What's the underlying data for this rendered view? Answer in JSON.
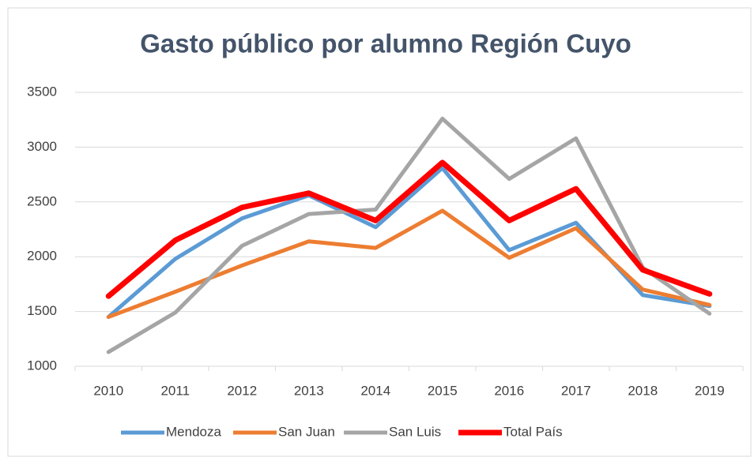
{
  "chart_data": {
    "type": "line",
    "title": "Gasto público por alumno Región Cuyo",
    "categories": [
      "2010",
      "2011",
      "2012",
      "2013",
      "2014",
      "2015",
      "2016",
      "2017",
      "2018",
      "2019"
    ],
    "series": [
      {
        "name": "Mendoza",
        "color": "#5b9bd5",
        "values": [
          1450,
          1980,
          2350,
          2560,
          2270,
          2810,
          2060,
          2310,
          1650,
          1550
        ]
      },
      {
        "name": "San Juan",
        "color": "#ed7d31",
        "values": [
          1450,
          1680,
          1920,
          2140,
          2080,
          2420,
          1990,
          2260,
          1700,
          1560
        ]
      },
      {
        "name": "San Luis",
        "color": "#a5a5a5",
        "values": [
          1130,
          1490,
          2100,
          2390,
          2430,
          3260,
          2710,
          3080,
          1900,
          1480
        ]
      },
      {
        "name": "Total País",
        "color": "#ff0000",
        "values": [
          1640,
          2150,
          2450,
          2580,
          2330,
          2860,
          2330,
          2620,
          1880,
          1660
        ]
      }
    ],
    "ylim": [
      1000,
      3500
    ],
    "yticks": [
      1000,
      1500,
      2000,
      2500,
      3000,
      3500
    ],
    "grid": true,
    "legend": "bottom"
  }
}
